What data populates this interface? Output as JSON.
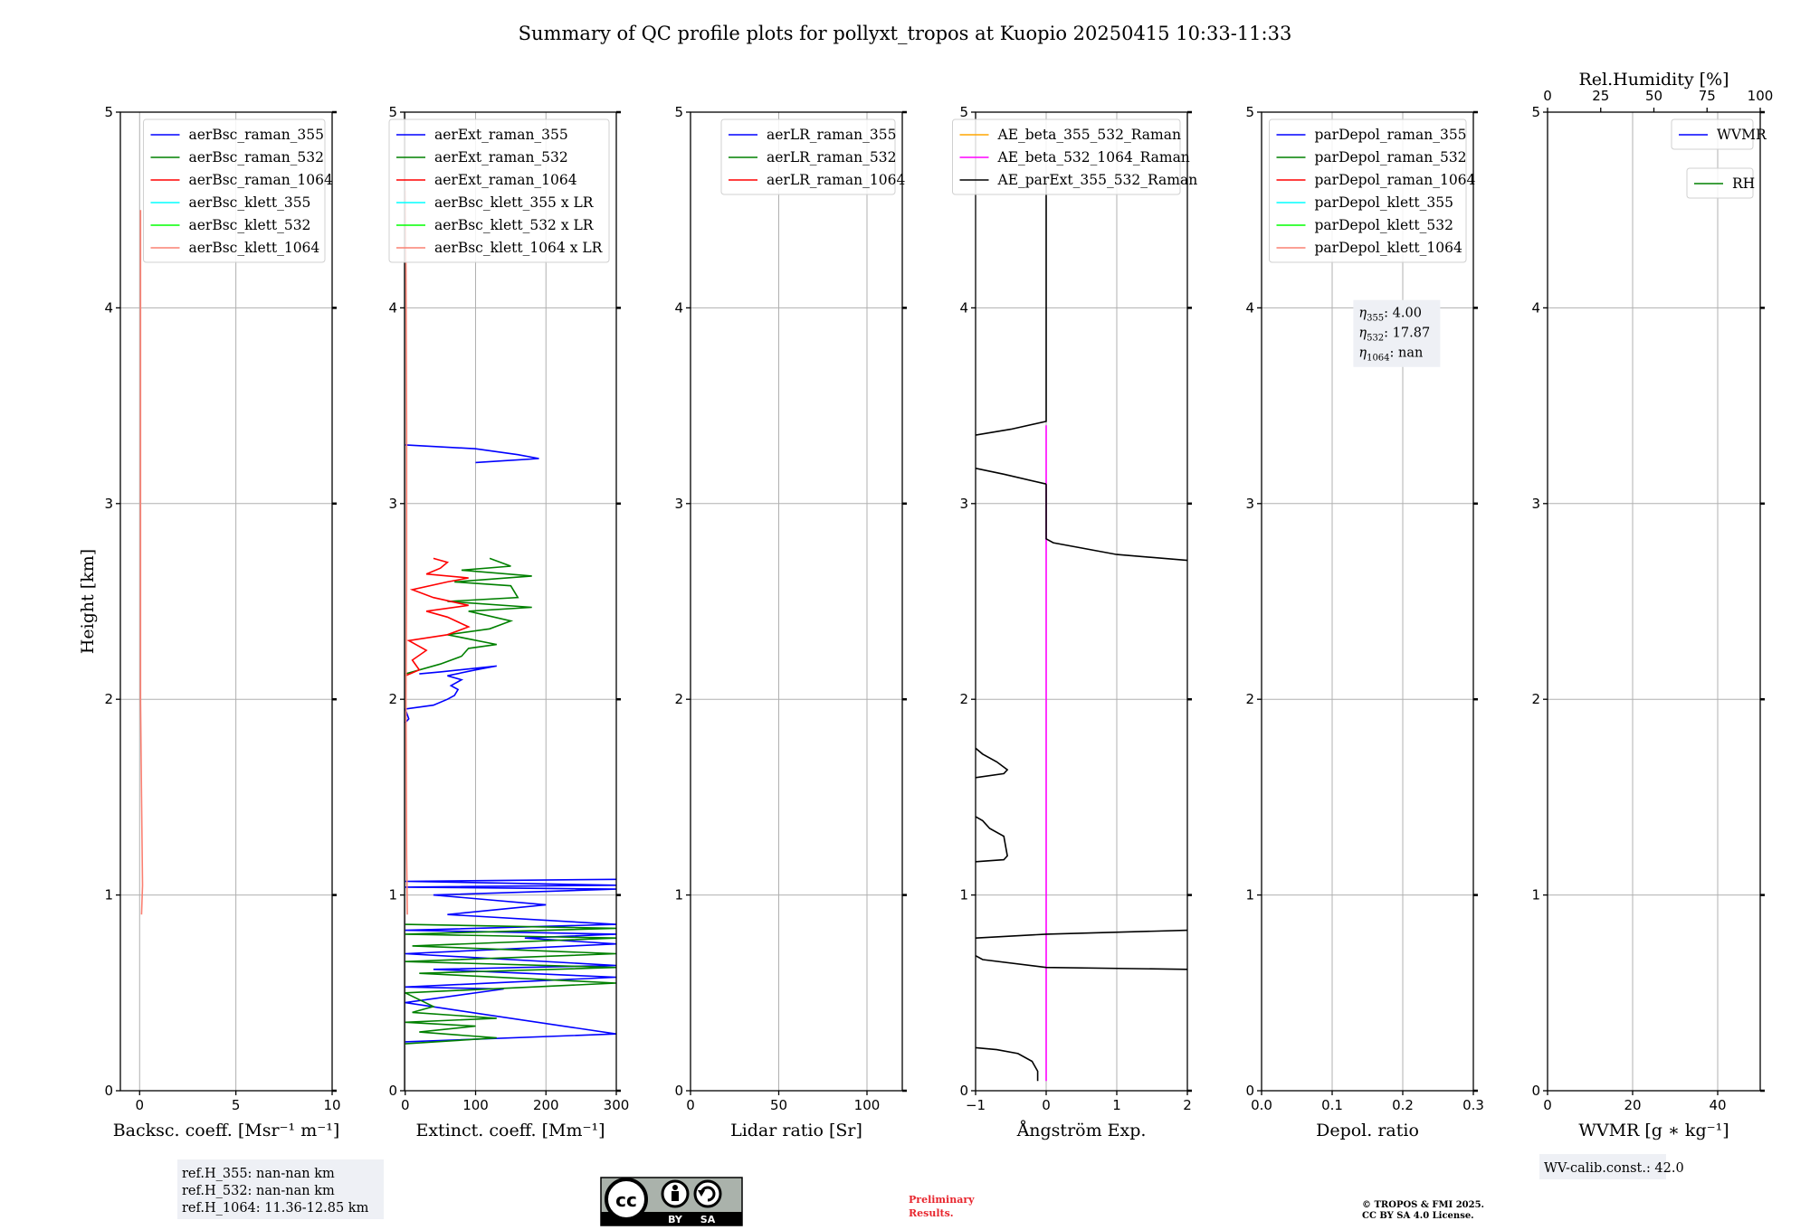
{
  "figure_title": "Summary of QC profile plots for pollyxt_tropos at Kuopio 20250415 10:33-11:33",
  "colors": {
    "blue": "#0000ff",
    "green": "#008000",
    "red": "#ff0000",
    "cyan": "#00ffff",
    "lime": "#00ff00",
    "salmon": "#fa8072",
    "orange": "#ffa500",
    "magenta": "#ff00ff",
    "black": "#000000",
    "grid": "#b0b0b0",
    "box_bg": "#eef0f5",
    "preliminary": "#e8262e"
  },
  "chart_data": [
    {
      "type": "line",
      "xlabel": "Backsc. coeff. [Msr⁻¹ m⁻¹]",
      "ylabel": "Height [km]",
      "xlim": [
        -1,
        10
      ],
      "ylim": [
        0,
        5
      ],
      "xticks": [
        0,
        5,
        10
      ],
      "xtick_labels": [
        "0",
        "5",
        "10"
      ],
      "yticks": [
        0,
        1,
        2,
        3,
        4,
        5
      ],
      "ytick_labels": [
        "0",
        "1",
        "2",
        "3",
        "4",
        "5"
      ],
      "grid": true,
      "legend": {
        "placement": "top-right",
        "entries": [
          {
            "label": "aerBsc_raman_355",
            "color": "blue"
          },
          {
            "label": "aerBsc_raman_532",
            "color": "green"
          },
          {
            "label": "aerBsc_raman_1064",
            "color": "red"
          },
          {
            "label": "aerBsc_klett_355",
            "color": "cyan"
          },
          {
            "label": "aerBsc_klett_532",
            "color": "lime"
          },
          {
            "label": "aerBsc_klett_1064",
            "color": "salmon"
          }
        ]
      },
      "series": [
        {
          "color": "salmon",
          "x": [
            0.1,
            0.15,
            0.1,
            0.05,
            0.05,
            0.05,
            0.05,
            0.05,
            0.05
          ],
          "y": [
            0.9,
            1.05,
            1.5,
            2.0,
            2.5,
            3.0,
            3.5,
            4.0,
            4.5
          ]
        }
      ],
      "textbox": null
    },
    {
      "type": "line",
      "xlabel": "Extinct. coeff. [Mm⁻¹]",
      "xlim": [
        -1,
        300
      ],
      "ylim": [
        0,
        5
      ],
      "xticks": [
        0,
        100,
        200,
        300
      ],
      "xtick_labels": [
        "0",
        "100",
        "200",
        "300"
      ],
      "yticks": [
        0,
        1,
        2,
        3,
        4,
        5
      ],
      "ytick_labels": [
        "0",
        "1",
        "2",
        "3",
        "4",
        "5"
      ],
      "grid": true,
      "legend": {
        "placement": "top-right",
        "entries": [
          {
            "label": "aerExt_raman_355",
            "color": "blue"
          },
          {
            "label": "aerExt_raman_532",
            "color": "green"
          },
          {
            "label": "aerExt_raman_1064",
            "color": "red"
          },
          {
            "label": "aerBsc_klett_355 x LR",
            "color": "cyan"
          },
          {
            "label": "aerBsc_klett_532 x LR",
            "color": "lime"
          },
          {
            "label": "aerBsc_klett_1064 x LR",
            "color": "salmon"
          }
        ]
      },
      "series": [
        {
          "color": "blue",
          "x": [
            0,
            300,
            0,
            140,
            0,
            300,
            40,
            300,
            0,
            300,
            170,
            300,
            0,
            300,
            60,
            200,
            40,
            300,
            0,
            300,
            0,
            300
          ],
          "y": [
            0.25,
            0.29,
            0.45,
            0.52,
            0.53,
            0.58,
            0.62,
            0.64,
            0.7,
            0.75,
            0.78,
            0.8,
            0.82,
            0.85,
            0.9,
            0.95,
            1.0,
            1.03,
            1.04,
            1.05,
            1.07,
            1.08
          ]
        },
        {
          "color": "green",
          "x": [
            0,
            130,
            20,
            100,
            0,
            130,
            10,
            40,
            0,
            300,
            20,
            300,
            0,
            300,
            10,
            300,
            0,
            300,
            0
          ],
          "y": [
            0.24,
            0.27,
            0.3,
            0.33,
            0.35,
            0.37,
            0.4,
            0.43,
            0.5,
            0.55,
            0.6,
            0.63,
            0.66,
            0.7,
            0.74,
            0.78,
            0.8,
            0.83,
            0.85
          ]
        },
        {
          "color": "blue",
          "x": [
            0,
            5,
            0,
            40,
            60,
            70,
            75,
            65,
            80,
            60,
            100,
            130,
            50,
            20
          ],
          "y": [
            1.88,
            1.9,
            1.95,
            1.97,
            2.0,
            2.02,
            2.05,
            2.07,
            2.1,
            2.12,
            2.15,
            2.17,
            2.14,
            2.13
          ]
        },
        {
          "color": "green",
          "x": [
            0,
            50,
            80,
            90,
            130,
            60,
            120,
            150,
            90,
            180,
            60,
            160,
            150,
            70,
            180,
            80,
            150,
            120
          ],
          "y": [
            2.13,
            2.18,
            2.22,
            2.26,
            2.28,
            2.33,
            2.36,
            2.4,
            2.45,
            2.47,
            2.5,
            2.52,
            2.58,
            2.6,
            2.63,
            2.66,
            2.68,
            2.72
          ]
        },
        {
          "color": "red",
          "x": [
            0,
            20,
            10,
            30,
            5,
            60,
            90,
            60,
            30,
            90,
            40,
            10,
            60,
            90,
            30,
            50,
            60,
            40
          ],
          "y": [
            2.12,
            2.15,
            2.2,
            2.25,
            2.3,
            2.33,
            2.37,
            2.42,
            2.45,
            2.48,
            2.52,
            2.56,
            2.6,
            2.62,
            2.64,
            2.67,
            2.7,
            2.72
          ]
        },
        {
          "color": "blue",
          "x": [
            0,
            100,
            160,
            190,
            100
          ],
          "y": [
            3.3,
            3.28,
            3.25,
            3.23,
            3.21
          ]
        },
        {
          "color": "salmon",
          "x": [
            3,
            2,
            1,
            2,
            2,
            1,
            0
          ],
          "y": [
            0.9,
            1.2,
            2.0,
            2.6,
            3.4,
            4.2,
            4.6
          ]
        }
      ],
      "textbox": null
    },
    {
      "type": "line",
      "xlabel": "Lidar ratio [Sr]",
      "xlim": [
        0,
        120
      ],
      "ylim": [
        0,
        5
      ],
      "xticks": [
        0,
        50,
        100
      ],
      "xtick_labels": [
        "0",
        "50",
        "100"
      ],
      "yticks": [
        0,
        1,
        2,
        3,
        4,
        5
      ],
      "ytick_labels": [
        "0",
        "1",
        "2",
        "3",
        "4",
        "5"
      ],
      "grid": true,
      "legend": {
        "placement": "top-right",
        "entries": [
          {
            "label": "aerLR_raman_355",
            "color": "blue"
          },
          {
            "label": "aerLR_raman_532",
            "color": "green"
          },
          {
            "label": "aerLR_raman_1064",
            "color": "red"
          }
        ]
      },
      "series": [],
      "textbox": null
    },
    {
      "type": "line",
      "xlabel": "Ångström Exp.",
      "xlim": [
        -1,
        2
      ],
      "ylim": [
        0,
        5
      ],
      "xticks": [
        -1,
        0,
        1,
        2
      ],
      "xtick_labels": [
        "−1",
        "0",
        "1",
        "2"
      ],
      "yticks": [
        0,
        1,
        2,
        3,
        4,
        5
      ],
      "ytick_labels": [
        "0",
        "1",
        "2",
        "3",
        "4",
        "5"
      ],
      "grid": true,
      "legend": {
        "placement": "top-right",
        "entries": [
          {
            "label": "AE_beta_355_532_Raman",
            "color": "orange"
          },
          {
            "label": "AE_beta_532_1064_Raman",
            "color": "magenta"
          },
          {
            "label": "AE_parExt_355_532_Raman",
            "color": "black"
          }
        ]
      },
      "series": [
        {
          "color": "magenta",
          "x": [
            0,
            0
          ],
          "y": [
            0.05,
            3.4
          ]
        },
        {
          "color": "black",
          "x": [
            -0.12,
            -0.12,
            -0.2,
            -0.4,
            -0.7,
            -1
          ],
          "y": [
            0.05,
            0.1,
            0.15,
            0.19,
            0.21,
            0.22
          ]
        },
        {
          "color": "black",
          "x": [
            2,
            0,
            -0.9,
            -1
          ],
          "y": [
            0.62,
            0.63,
            0.67,
            0.69
          ]
        },
        {
          "color": "black",
          "x": [
            -1,
            0,
            2
          ],
          "y": [
            0.78,
            0.8,
            0.82
          ]
        },
        {
          "color": "black",
          "x": [
            -1,
            -0.6,
            -0.55,
            -0.6,
            -0.8,
            -0.9,
            -1
          ],
          "y": [
            1.17,
            1.18,
            1.2,
            1.3,
            1.34,
            1.38,
            1.4
          ]
        },
        {
          "color": "black",
          "x": [
            -1,
            -0.6,
            -0.55,
            -0.7,
            -0.9,
            -1
          ],
          "y": [
            1.6,
            1.62,
            1.64,
            1.68,
            1.72,
            1.75
          ]
        },
        {
          "color": "black",
          "x": [
            2,
            1,
            0.1,
            0,
            0
          ],
          "y": [
            2.71,
            2.74,
            2.8,
            2.82,
            3.1
          ]
        },
        {
          "color": "black",
          "x": [
            0,
            -0.6,
            -1
          ],
          "y": [
            3.1,
            3.15,
            3.18
          ]
        },
        {
          "color": "black",
          "x": [
            -1,
            -0.5,
            0,
            0
          ],
          "y": [
            3.35,
            3.38,
            3.42,
            4.65
          ]
        }
      ],
      "textbox": null
    },
    {
      "type": "line",
      "xlabel": "Depol. ratio",
      "xlim": [
        0,
        0.3
      ],
      "ylim": [
        0,
        5
      ],
      "xticks": [
        0,
        0.1,
        0.2,
        0.3
      ],
      "xtick_labels": [
        "0.0",
        "0.1",
        "0.2",
        "0.3"
      ],
      "yticks": [
        0,
        1,
        2,
        3,
        4,
        5
      ],
      "ytick_labels": [
        "0",
        "1",
        "2",
        "3",
        "4",
        "5"
      ],
      "grid": true,
      "legend": {
        "placement": "top-right",
        "entries": [
          {
            "label": "parDepol_raman_355",
            "color": "blue"
          },
          {
            "label": "parDepol_raman_532",
            "color": "green"
          },
          {
            "label": "parDepol_raman_1064",
            "color": "red"
          },
          {
            "label": "parDepol_klett_355",
            "color": "cyan"
          },
          {
            "label": "parDepol_klett_532",
            "color": "lime"
          },
          {
            "label": "parDepol_klett_1064",
            "color": "salmon"
          }
        ]
      },
      "series": [],
      "textbox": {
        "lines": [
          {
            "sub": "355",
            "value": ": 4.00"
          },
          {
            "sub": "532",
            "value": ": 17.87"
          },
          {
            "sub": "1064",
            "value": ": nan"
          }
        ]
      }
    },
    {
      "type": "line",
      "xlabel": "WVMR",
      "xlabel_math": "[g ∗ kg⁻¹]",
      "xlim": [
        0,
        50
      ],
      "ylim": [
        0,
        5
      ],
      "xticks": [
        0,
        20,
        40
      ],
      "xtick_labels": [
        "0",
        "20",
        "40"
      ],
      "top_axis_label": "Rel.Humidity [%]",
      "top_xlim": [
        0,
        100
      ],
      "top_xticks": [
        0,
        25,
        50,
        75,
        100
      ],
      "top_xtick_labels": [
        "0",
        "25",
        "50",
        "75",
        "100"
      ],
      "yticks": [
        0,
        1,
        2,
        3,
        4,
        5
      ],
      "ytick_labels": [
        "0",
        "1",
        "2",
        "3",
        "4",
        "5"
      ],
      "grid": true,
      "legend": {
        "placement": "top-right",
        "entries": [
          {
            "label": "WVMR",
            "color": "blue"
          }
        ]
      },
      "legend2": {
        "placement": "top-right",
        "entries": [
          {
            "label": "RH",
            "color": "green"
          }
        ]
      },
      "series": [],
      "textbox": null
    }
  ],
  "eta_symbol": "η",
  "ref_heights": [
    "ref.H_355: nan-nan km",
    "ref.H_532: nan-nan km",
    "ref.H_1064: 11.36-12.85 km"
  ],
  "wv_calib": "WV-calib.const.: 42.0",
  "preliminary": [
    "Preliminary",
    "Results."
  ],
  "copyright": [
    "© TROPOS & FMI 2025.",
    "CC BY SA 4.0 License."
  ],
  "license_badge": {
    "left": "BY",
    "right": "SA",
    "icon": "cc-by-sa-badge"
  }
}
